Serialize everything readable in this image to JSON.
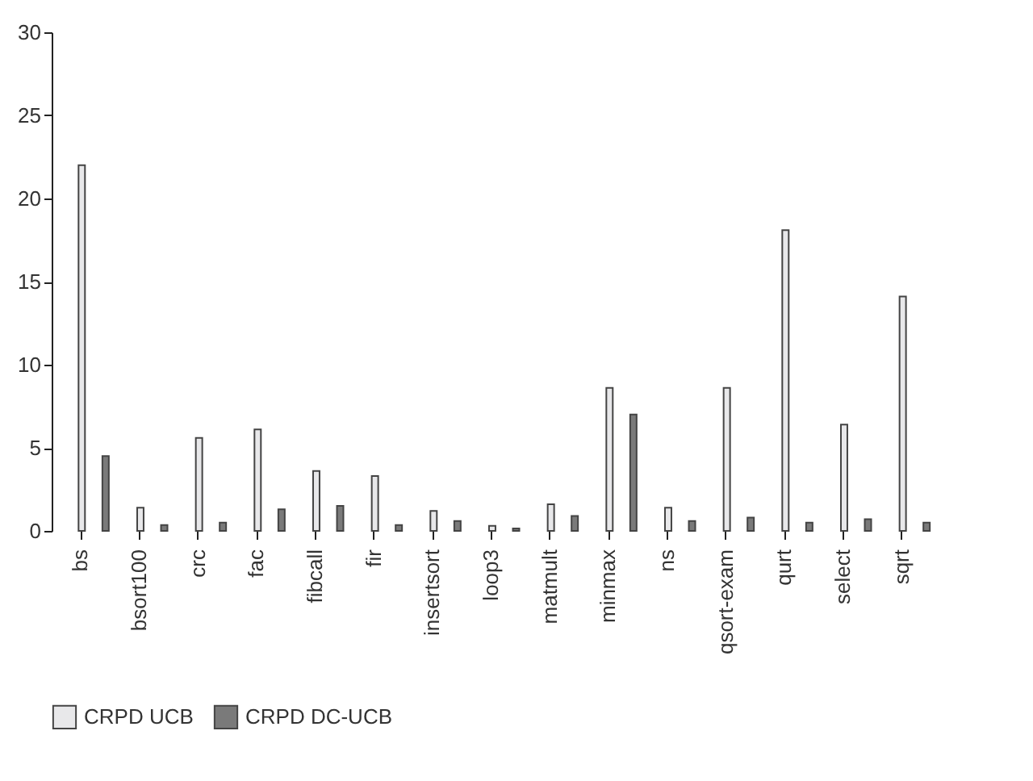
{
  "chart_data": {
    "type": "bar",
    "categories": [
      "bs",
      "bsort100",
      "crc",
      "fac",
      "fibcall",
      "fir",
      "insertsort",
      "loop3",
      "matmult",
      "minmax",
      "ns",
      "qsort-exam",
      "qurt",
      "select",
      "sqrt"
    ],
    "series": [
      {
        "name": "CRPD UCB",
        "color": "#e8e8ea",
        "values": [
          22,
          1.4,
          5.6,
          6.1,
          3.6,
          3.3,
          1.2,
          0.3,
          1.6,
          8.6,
          1.4,
          8.6,
          18.1,
          6.4,
          14.1
        ]
      },
      {
        "name": "CRPD DC-UCB",
        "color": "#7a7a7a",
        "values": [
          4.5,
          0.35,
          0.5,
          1.3,
          1.5,
          0.35,
          0.6,
          0.15,
          0.9,
          7.0,
          0.6,
          0.8,
          0.5,
          0.7,
          0.5
        ]
      }
    ],
    "ylim": [
      0,
      30
    ],
    "yticks": [
      0,
      5,
      10,
      15,
      20,
      25,
      30
    ],
    "grid": false,
    "legend": "bottom"
  }
}
